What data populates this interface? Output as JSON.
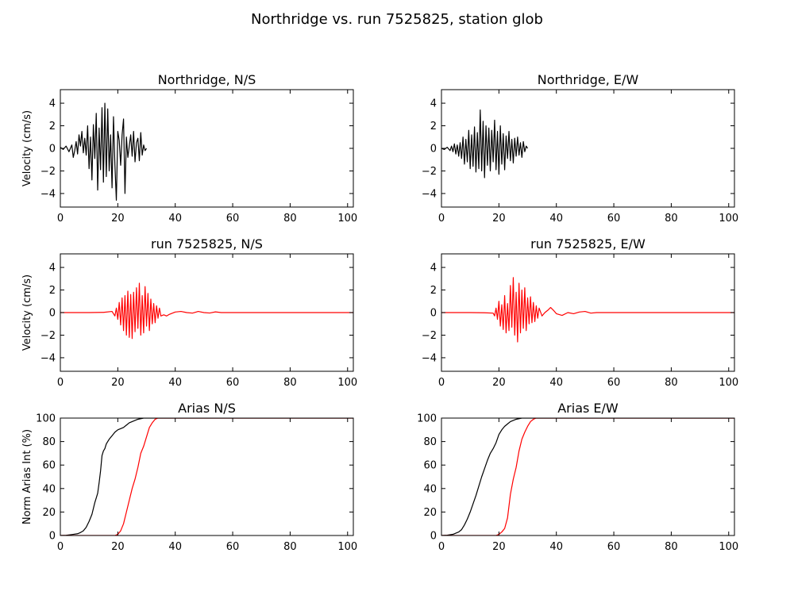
{
  "figure": {
    "title": "Northridge vs. run 7525825, station glob"
  },
  "colors": {
    "recorded": "#000000",
    "simulated": "#ff0000",
    "axes": "#000000",
    "background": "#ffffff"
  },
  "chart_data": [
    {
      "type": "line",
      "title": "Northridge, N/S",
      "xlabel": "",
      "ylabel": "Velocity (cm/s)",
      "xlim": [
        0,
        102
      ],
      "ylim": [
        -5.2,
        5.2
      ],
      "xticks": [
        0,
        20,
        40,
        60,
        80,
        100
      ],
      "yticks": [
        -4,
        -2,
        0,
        2,
        4
      ],
      "series": [
        {
          "color": "#000000",
          "x": [
            0,
            1,
            2,
            3,
            4,
            4.5,
            5,
            5.5,
            6,
            6.5,
            7,
            7.5,
            8,
            8.5,
            9,
            9.5,
            10,
            10.5,
            11,
            11.5,
            12,
            12.5,
            13,
            13.5,
            14,
            14.5,
            15,
            15.5,
            16,
            16.5,
            17,
            17.5,
            18,
            18.5,
            19,
            19.5,
            20,
            20.5,
            21,
            21.5,
            22,
            22.5,
            23,
            23.5,
            24,
            24.5,
            25,
            25.5,
            26,
            26.5,
            27,
            27.5,
            28,
            28.5,
            29,
            29.5,
            30
          ],
          "values": [
            0.1,
            -0.1,
            0.2,
            -0.3,
            0.3,
            -0.8,
            -0.2,
            0.6,
            -0.5,
            1.2,
            0.2,
            1.5,
            -0.4,
            0.9,
            -0.6,
            2.0,
            -1.8,
            1.0,
            -2.8,
            2.1,
            -0.9,
            3.1,
            -3.7,
            1.8,
            -1.9,
            3.6,
            -3.0,
            4.0,
            -2.5,
            3.5,
            -2.0,
            1.2,
            -3.5,
            2.8,
            -1.5,
            -4.6,
            1.5,
            0.7,
            -1.5,
            1.2,
            2.6,
            -4.0,
            1.0,
            -0.8,
            0.2,
            1.2,
            -0.7,
            1.5,
            -1.2,
            0.5,
            0.9,
            -1.1,
            1.4,
            -0.6,
            0.3,
            -0.2,
            0.0
          ]
        }
      ]
    },
    {
      "type": "line",
      "title": "Northridge, E/W",
      "xlabel": "",
      "ylabel": "",
      "xlim": [
        0,
        102
      ],
      "ylim": [
        -5.2,
        5.2
      ],
      "xticks": [
        0,
        20,
        40,
        60,
        80,
        100
      ],
      "yticks": [
        -4,
        -2,
        0,
        2,
        4
      ],
      "series": [
        {
          "color": "#000000",
          "x": [
            0,
            1,
            2,
            3,
            3.5,
            4,
            4.5,
            5,
            5.5,
            6,
            6.5,
            7,
            7.5,
            8,
            8.5,
            9,
            9.5,
            10,
            10.5,
            11,
            11.5,
            12,
            12.5,
            13,
            13.5,
            14,
            14.5,
            15,
            15.5,
            16,
            16.5,
            17,
            17.5,
            18,
            18.5,
            19,
            19.5,
            20,
            20.5,
            21,
            21.5,
            22,
            22.5,
            23,
            23.5,
            24,
            24.5,
            25,
            25.5,
            26,
            26.5,
            27,
            27.5,
            28,
            28.5,
            29,
            29.5,
            30
          ],
          "values": [
            0.0,
            -0.1,
            0.1,
            -0.2,
            0.2,
            -0.3,
            0.4,
            -0.5,
            0.3,
            -0.7,
            0.5,
            -0.9,
            1.0,
            -1.4,
            0.8,
            -1.2,
            1.6,
            -1.8,
            1.2,
            -1.6,
            1.9,
            -2.1,
            1.4,
            -1.8,
            3.4,
            -2.0,
            2.4,
            -2.6,
            2.0,
            -1.5,
            1.8,
            -2.0,
            1.6,
            -1.2,
            2.5,
            -1.9,
            1.5,
            -2.3,
            2.0,
            -1.4,
            1.3,
            -1.9,
            1.1,
            -0.9,
            1.5,
            -1.1,
            0.8,
            -1.3,
            0.9,
            -0.7,
            1.0,
            -0.6,
            0.5,
            -0.8,
            0.6,
            -0.3,
            0.2,
            0.0
          ]
        }
      ]
    },
    {
      "type": "line",
      "title": "run 7525825, N/S",
      "xlabel": "",
      "ylabel": "Velocity (cm/s)",
      "xlim": [
        0,
        102
      ],
      "ylim": [
        -5.2,
        5.2
      ],
      "xticks": [
        0,
        20,
        40,
        60,
        80,
        100
      ],
      "yticks": [
        -4,
        -2,
        0,
        2,
        4
      ],
      "series": [
        {
          "color": "#ff0000",
          "x": [
            0,
            10,
            15,
            18,
            19,
            19.5,
            20,
            20.5,
            21,
            21.5,
            22,
            22.5,
            23,
            23.5,
            24,
            24.5,
            25,
            25.5,
            26,
            26.5,
            27,
            27.5,
            28,
            28.5,
            29,
            29.5,
            30,
            30.5,
            31,
            31.5,
            32,
            32.5,
            33,
            33.5,
            34,
            34.5,
            35,
            36,
            37,
            38,
            40,
            42,
            44,
            46,
            48,
            50,
            52,
            54,
            56,
            60,
            70,
            80,
            90,
            100,
            102
          ],
          "values": [
            0,
            0,
            0.02,
            0.1,
            -0.3,
            0.4,
            -0.6,
            0.9,
            -1.1,
            1.3,
            -1.6,
            1.5,
            -2.0,
            1.9,
            -2.2,
            1.6,
            -2.3,
            1.8,
            -1.7,
            2.2,
            -1.4,
            2.6,
            -2.0,
            1.5,
            -1.8,
            2.3,
            -1.2,
            1.7,
            -1.6,
            1.2,
            -1.0,
            0.8,
            -0.9,
            0.6,
            -0.5,
            0.4,
            -0.3,
            -0.2,
            -0.3,
            -0.15,
            0.05,
            0.1,
            0.0,
            -0.05,
            0.1,
            0.0,
            -0.04,
            0.06,
            0,
            0,
            0,
            0,
            0,
            0,
            0
          ]
        }
      ]
    },
    {
      "type": "line",
      "title": "run 7525825, E/W",
      "xlabel": "",
      "ylabel": "",
      "xlim": [
        0,
        102
      ],
      "ylim": [
        -5.2,
        5.2
      ],
      "xticks": [
        0,
        20,
        40,
        60,
        80,
        100
      ],
      "yticks": [
        -4,
        -2,
        0,
        2,
        4
      ],
      "series": [
        {
          "color": "#ff0000",
          "x": [
            0,
            10,
            15,
            18,
            18.5,
            19,
            19.5,
            20,
            20.5,
            21,
            21.5,
            22,
            22.5,
            23,
            23.5,
            24,
            24.5,
            25,
            25.5,
            26,
            26.5,
            27,
            27.5,
            28,
            28.5,
            29,
            29.5,
            30,
            30.5,
            31,
            31.5,
            32,
            32.5,
            33,
            33.5,
            34,
            35,
            36,
            37,
            38,
            39,
            40,
            42,
            44,
            46,
            48,
            50,
            52,
            54,
            56,
            60,
            70,
            80,
            90,
            100,
            102
          ],
          "values": [
            0,
            0,
            -0.02,
            -0.05,
            -0.3,
            0.4,
            -0.6,
            1.0,
            -1.2,
            0.7,
            -1.5,
            1.5,
            -1.8,
            0.8,
            -1.6,
            2.4,
            -1.3,
            3.1,
            -2.0,
            1.8,
            -2.6,
            2.6,
            -1.8,
            2.0,
            -1.4,
            2.2,
            -1.6,
            1.3,
            -1.0,
            1.4,
            -0.9,
            0.9,
            -0.8,
            0.6,
            -0.5,
            0.4,
            -0.3,
            0.0,
            0.2,
            0.45,
            0.2,
            -0.1,
            -0.25,
            0.0,
            -0.1,
            0.05,
            0.1,
            -0.05,
            0.0,
            0,
            0,
            0,
            0,
            0,
            0,
            0
          ]
        }
      ]
    },
    {
      "type": "line",
      "title": "Arias N/S",
      "xlabel": "",
      "ylabel": "Norm Arias Int (%)",
      "xlim": [
        0,
        102
      ],
      "ylim": [
        0,
        100
      ],
      "xticks": [
        0,
        20,
        40,
        60,
        80,
        100
      ],
      "yticks": [
        0,
        20,
        40,
        60,
        80,
        100
      ],
      "series": [
        {
          "color": "#000000",
          "x": [
            0,
            2,
            4,
            6,
            7,
            8,
            9,
            10,
            11,
            12,
            12.5,
            13,
            13.5,
            14,
            14.5,
            15,
            15.5,
            16,
            16.5,
            17,
            18,
            19,
            20,
            21,
            22,
            23,
            24,
            25,
            26,
            27,
            28,
            29,
            30,
            102
          ],
          "values": [
            0,
            0.2,
            0.8,
            1.5,
            2.5,
            4,
            7,
            12,
            18,
            28,
            32,
            36,
            45,
            55,
            68,
            72,
            74,
            78,
            80,
            82,
            85,
            88,
            90,
            91,
            92,
            94,
            96,
            97,
            98,
            99,
            99.5,
            100,
            100,
            100
          ]
        },
        {
          "color": "#ff0000",
          "x": [
            0,
            19,
            20,
            21,
            22,
            23,
            24,
            25,
            26,
            27,
            28,
            29,
            30,
            31,
            32,
            33,
            34,
            35,
            102
          ],
          "values": [
            0,
            0,
            1,
            4,
            10,
            20,
            30,
            40,
            48,
            58,
            70,
            76,
            84,
            92,
            96,
            99,
            100,
            100,
            100
          ]
        }
      ]
    },
    {
      "type": "line",
      "title": "Arias E/W",
      "xlabel": "",
      "ylabel": "",
      "xlim": [
        0,
        102
      ],
      "ylim": [
        0,
        100
      ],
      "xticks": [
        0,
        20,
        40,
        60,
        80,
        100
      ],
      "yticks": [
        0,
        20,
        40,
        60,
        80,
        100
      ],
      "series": [
        {
          "color": "#000000",
          "x": [
            0,
            2,
            4,
            6,
            7,
            8,
            9,
            10,
            11,
            12,
            13,
            14,
            15,
            16,
            17,
            18,
            19,
            20,
            21,
            22,
            23,
            24,
            25,
            26,
            27,
            28,
            29,
            30,
            102
          ],
          "values": [
            0,
            0.3,
            1,
            3,
            5,
            9,
            14,
            20,
            27,
            34,
            42,
            50,
            57,
            64,
            70,
            74,
            79,
            86,
            90,
            93,
            95,
            97,
            98,
            99,
            99.5,
            100,
            100,
            100,
            100
          ]
        },
        {
          "color": "#ff0000",
          "x": [
            0,
            19,
            20,
            21,
            22,
            23,
            24,
            25,
            26,
            27,
            28,
            29,
            30,
            31,
            32,
            33,
            34,
            102
          ],
          "values": [
            0,
            0,
            1,
            3,
            6,
            15,
            35,
            48,
            58,
            72,
            82,
            88,
            93,
            97,
            99,
            100,
            100,
            100
          ]
        }
      ]
    }
  ]
}
